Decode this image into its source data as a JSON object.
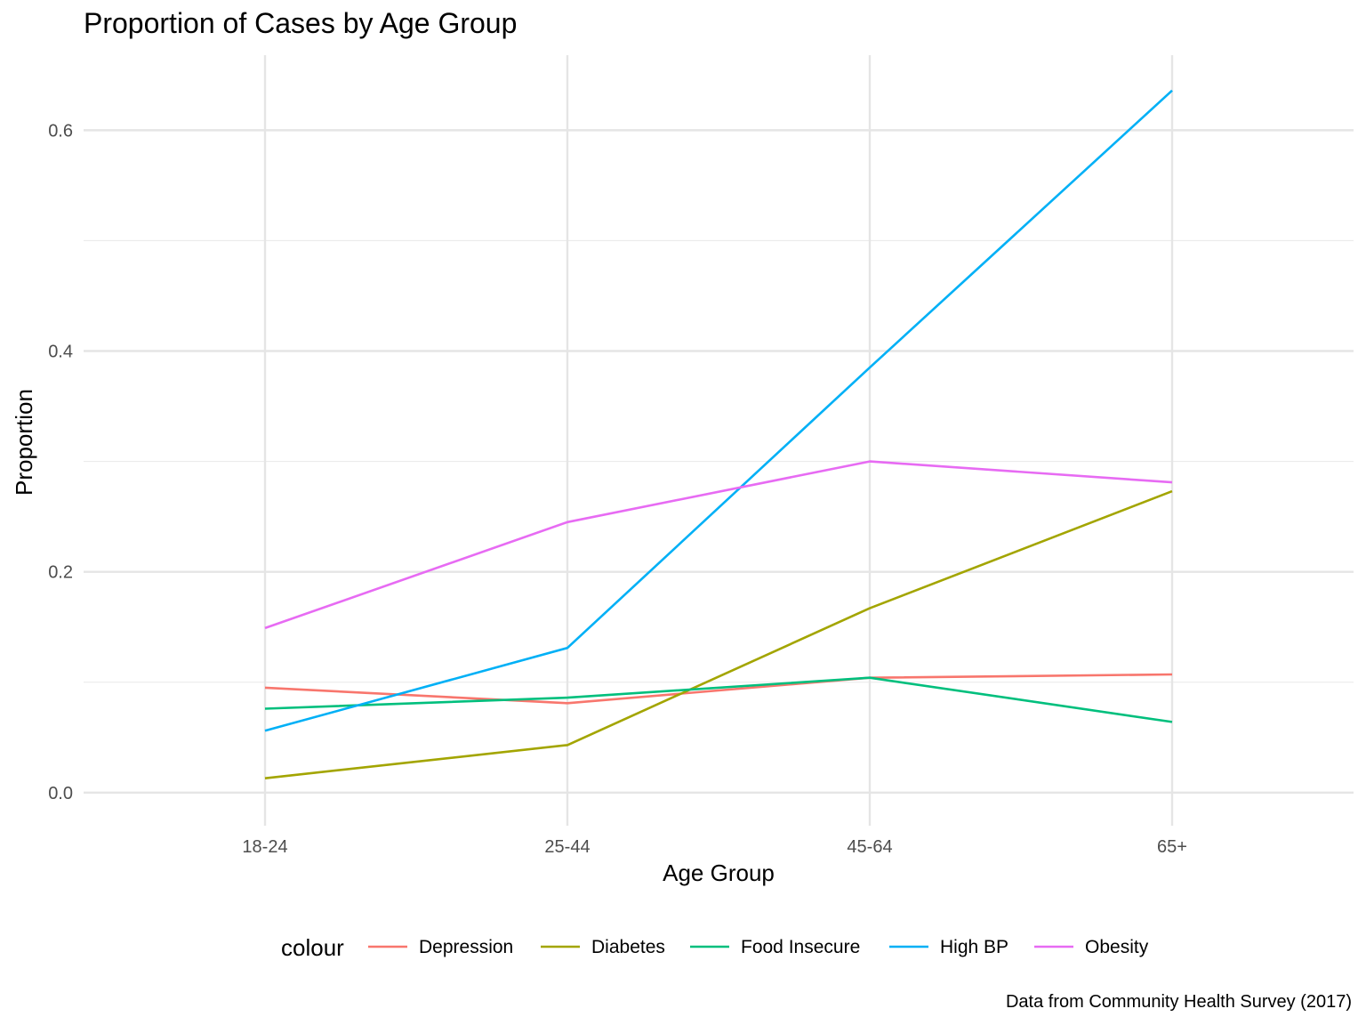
{
  "chart_data": {
    "type": "line",
    "title": "Proportion of Cases by Age Group",
    "xlabel": "Age Group",
    "ylabel": "Proportion",
    "caption": "Data from Community Health Survey (2017)",
    "categories": [
      "18-24",
      "25-44",
      "45-64",
      "65+"
    ],
    "ylim": [
      -0.03,
      0.668
    ],
    "yticks": [
      0.0,
      0.2,
      0.4,
      0.6
    ],
    "ytick_labels": [
      "0.0",
      "0.2",
      "0.4",
      "0.6"
    ],
    "grid": true,
    "legend_title": "colour",
    "legend_position": "bottom",
    "series": [
      {
        "name": "Depression",
        "color": "#F8766D",
        "values": [
          0.095,
          0.081,
          0.104,
          0.107
        ]
      },
      {
        "name": "Diabetes",
        "color": "#A3A500",
        "values": [
          0.013,
          0.043,
          0.167,
          0.273
        ]
      },
      {
        "name": "Food Insecure",
        "color": "#00BF7D",
        "values": [
          0.076,
          0.086,
          0.104,
          0.064
        ]
      },
      {
        "name": "High BP",
        "color": "#00B0F6",
        "values": [
          0.056,
          0.131,
          0.385,
          0.636
        ]
      },
      {
        "name": "Obesity",
        "color": "#E76BF3",
        "values": [
          0.149,
          0.245,
          0.3,
          0.281
        ]
      }
    ]
  }
}
